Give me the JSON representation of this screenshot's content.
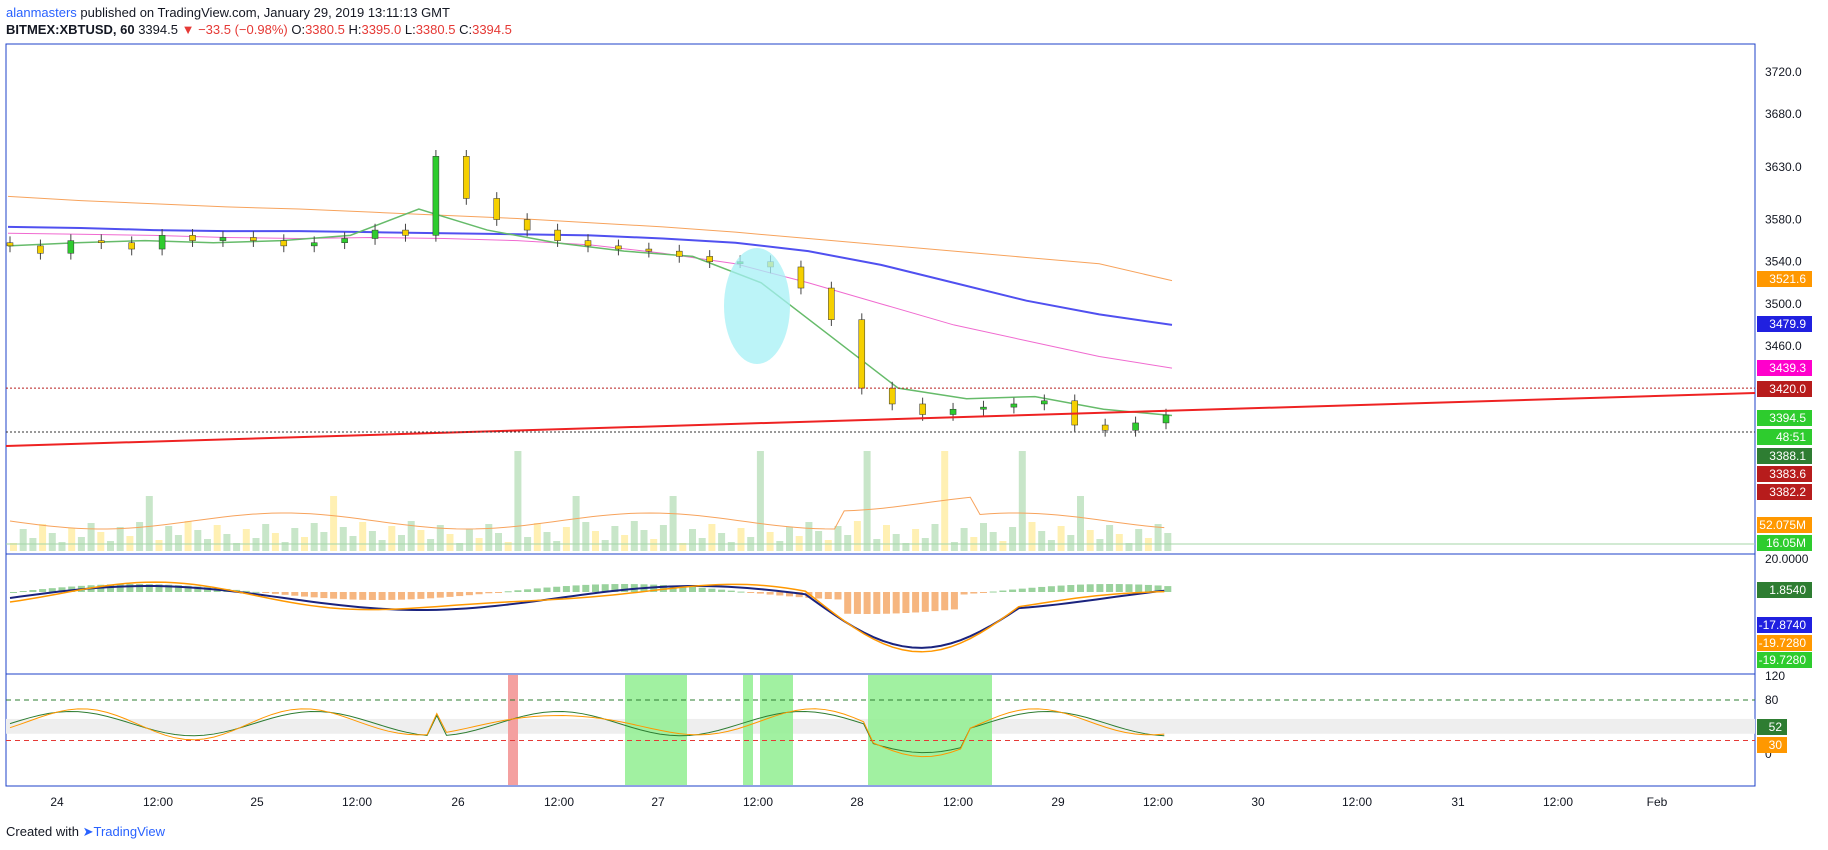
{
  "header": {
    "user": "alanmasters",
    "published_text": " published on TradingView.com, January 29, 2019 13:11:13 GMT",
    "symbol": "BITMEX:XBTUSD, 60",
    "last": "3394.5",
    "arrow": "▼",
    "change": "−33.5 (−0.98%)",
    "o_label": "O:",
    "o_value": "3380.5",
    "h_label": "H:",
    "h_value": "3395.0",
    "l_label": "L:",
    "l_value": "3380.5",
    "c_label": "C:",
    "c_value": "3394.5"
  },
  "footer": {
    "created_with": "Created with",
    "brand": "TradingView"
  },
  "colors": {
    "up": "#2ecc2e",
    "down": "#f5d000",
    "sma_orange": "#f7a35c",
    "ma_blue": "#5050f0",
    "ma_magenta": "#f06ad0",
    "ema_green": "#66bb6a",
    "trendline": "#ee2222",
    "level": "#b71c1c",
    "border": "#1e40c8"
  },
  "chart_data": [
    {
      "type": "line",
      "name": "price",
      "x_ticks": [
        "24",
        "12:00",
        "25",
        "12:00",
        "26",
        "12:00",
        "27",
        "12:00",
        "28",
        "12:00",
        "29",
        "12:00",
        "30",
        "12:00",
        "31",
        "12:00",
        "Feb"
      ],
      "y_ticks": [
        "3720.0",
        "3680.0",
        "3630.0",
        "3580.0",
        "3540.0",
        "3500.0",
        "3460.0"
      ],
      "ylim": [
        3355,
        3740
      ],
      "candles_approx_close": [
        3555,
        3548,
        3560,
        3558,
        3552,
        3565,
        3560,
        3563,
        3560,
        3555,
        3558,
        3562,
        3570,
        3565,
        3640,
        3600,
        3580,
        3570,
        3560,
        3555,
        3552,
        3550,
        3545,
        3540,
        3540,
        3535,
        3515,
        3485,
        3420,
        3405,
        3395,
        3400,
        3402,
        3405,
        3408,
        3385,
        3380,
        3387,
        3394.5
      ],
      "series": [
        {
          "name": "SMA slow",
          "values": [
            3602,
            3598,
            3595,
            3592,
            3590,
            3587,
            3584,
            3581,
            3577,
            3573,
            3568,
            3562,
            3556,
            3550,
            3544,
            3538,
            3522
          ]
        },
        {
          "name": "SMA 100",
          "values": [
            3573,
            3572,
            3570,
            3569,
            3569,
            3568,
            3567,
            3566,
            3565,
            3562,
            3558,
            3550,
            3537,
            3520,
            3503,
            3490,
            3480
          ]
        },
        {
          "name": "SMA 50",
          "values": [
            3567,
            3566,
            3565,
            3563,
            3562,
            3563,
            3562,
            3560,
            3556,
            3548,
            3538,
            3520,
            3500,
            3480,
            3465,
            3450,
            3439
          ]
        },
        {
          "name": "EMA",
          "values": [
            3555,
            3558,
            3560,
            3558,
            3560,
            3565,
            3590,
            3570,
            3558,
            3550,
            3545,
            3520,
            3470,
            3420,
            3410,
            3412,
            3400,
            3394
          ]
        }
      ],
      "levels": [
        {
          "label": "3521.6",
          "color": "#ff9800"
        },
        {
          "label": "3479.9",
          "color": "#2020e0"
        },
        {
          "label": "3439.3",
          "color": "#ff00cc"
        },
        {
          "label": "3420.0",
          "color": "#b71c1c"
        },
        {
          "label": "3394.5",
          "color": "#2ecc2e"
        },
        {
          "label": "48:51",
          "color": "#2ecc2e"
        },
        {
          "label": "3388.1",
          "color": "#2e7d32"
        },
        {
          "label": "3383.6",
          "color": "#b71c1c"
        },
        {
          "label": "3382.2",
          "color": "#b71c1c"
        }
      ],
      "volume_labels": [
        "52.075M",
        "16.05M"
      ]
    },
    {
      "type": "line",
      "name": "macd",
      "y_ticks": [
        "20.0000"
      ],
      "values_labels": [
        "1.8540",
        "-17.8740",
        "-19.7280",
        "-19.7280"
      ]
    },
    {
      "type": "line",
      "name": "rsi",
      "y_ticks": [
        "120",
        "80",
        "0"
      ],
      "values_labels": [
        "52",
        "30"
      ],
      "ylim": [
        -20,
        130
      ]
    }
  ]
}
